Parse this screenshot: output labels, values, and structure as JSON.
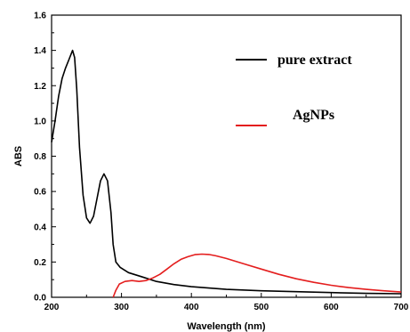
{
  "chart_data": {
    "type": "line",
    "title": "",
    "xlabel": "Wavelength (nm)",
    "ylabel": "ABS",
    "xlim": [
      200,
      700
    ],
    "ylim": [
      0.0,
      1.6
    ],
    "x_ticks": [
      200,
      300,
      400,
      500,
      600,
      700
    ],
    "y_ticks": [
      0.0,
      0.2,
      0.4,
      0.6,
      0.8,
      1.0,
      1.2,
      1.4,
      1.6
    ],
    "x_tick_labels": [
      "200",
      "300",
      "400",
      "500",
      "600",
      "700"
    ],
    "y_tick_labels": [
      "0.0",
      "0.2",
      "0.4",
      "0.6",
      "0.8",
      "1.0",
      "1.2",
      "1.4",
      "1.6"
    ],
    "grid": false,
    "legend_position": "top-right",
    "series": [
      {
        "name": "pure extract",
        "color": "#000000",
        "points": [
          [
            200,
            0.88
          ],
          [
            205,
            1.0
          ],
          [
            210,
            1.14
          ],
          [
            215,
            1.24
          ],
          [
            220,
            1.3
          ],
          [
            225,
            1.35
          ],
          [
            230,
            1.4
          ],
          [
            233,
            1.36
          ],
          [
            236,
            1.18
          ],
          [
            240,
            0.85
          ],
          [
            245,
            0.58
          ],
          [
            250,
            0.45
          ],
          [
            255,
            0.42
          ],
          [
            260,
            0.46
          ],
          [
            265,
            0.56
          ],
          [
            270,
            0.66
          ],
          [
            275,
            0.7
          ],
          [
            280,
            0.66
          ],
          [
            285,
            0.48
          ],
          [
            288,
            0.3
          ],
          [
            292,
            0.2
          ],
          [
            298,
            0.17
          ],
          [
            310,
            0.14
          ],
          [
            330,
            0.115
          ],
          [
            350,
            0.09
          ],
          [
            375,
            0.072
          ],
          [
            400,
            0.06
          ],
          [
            450,
            0.045
          ],
          [
            500,
            0.037
          ],
          [
            550,
            0.032
          ],
          [
            600,
            0.027
          ],
          [
            650,
            0.022
          ],
          [
            700,
            0.02
          ]
        ]
      },
      {
        "name": "AgNPs",
        "color": "#e41e1e",
        "points": [
          [
            288,
            0.0
          ],
          [
            292,
            0.04
          ],
          [
            297,
            0.075
          ],
          [
            305,
            0.09
          ],
          [
            315,
            0.095
          ],
          [
            325,
            0.09
          ],
          [
            335,
            0.095
          ],
          [
            345,
            0.11
          ],
          [
            355,
            0.13
          ],
          [
            365,
            0.16
          ],
          [
            375,
            0.19
          ],
          [
            385,
            0.215
          ],
          [
            395,
            0.23
          ],
          [
            405,
            0.242
          ],
          [
            415,
            0.245
          ],
          [
            425,
            0.243
          ],
          [
            435,
            0.235
          ],
          [
            450,
            0.22
          ],
          [
            475,
            0.19
          ],
          [
            500,
            0.16
          ],
          [
            525,
            0.13
          ],
          [
            550,
            0.105
          ],
          [
            575,
            0.085
          ],
          [
            600,
            0.068
          ],
          [
            625,
            0.055
          ],
          [
            650,
            0.045
          ],
          [
            675,
            0.037
          ],
          [
            700,
            0.03
          ]
        ]
      }
    ]
  }
}
